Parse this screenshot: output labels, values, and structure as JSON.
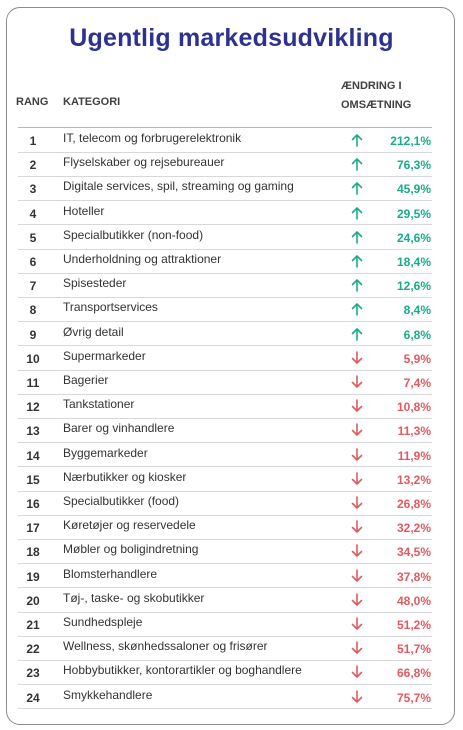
{
  "title": "Ugentlig markedsudvikling",
  "headers": {
    "rank": "RANG",
    "category": "KATEGORI",
    "change_line1": "ÆNDRING I",
    "change_line2": "OMSÆTNING"
  },
  "colors": {
    "up": "#1aab8a",
    "down": "#e05a60",
    "title": "#2e3192"
  },
  "rows": [
    {
      "rank": "1",
      "category": "IT, telecom og forbrugerelektronik",
      "direction": "up",
      "value": "212,1%"
    },
    {
      "rank": "2",
      "category": "Flyselskaber og rejsebureauer",
      "direction": "up",
      "value": "76,3%"
    },
    {
      "rank": "3",
      "category": "Digitale services, spil, streaming og gaming",
      "direction": "up",
      "value": "45,9%"
    },
    {
      "rank": "4",
      "category": "Hoteller",
      "direction": "up",
      "value": "29,5%"
    },
    {
      "rank": "5",
      "category": "Specialbutikker (non-food)",
      "direction": "up",
      "value": "24,6%"
    },
    {
      "rank": "6",
      "category": "Underholdning og attraktioner",
      "direction": "up",
      "value": "18,4%"
    },
    {
      "rank": "7",
      "category": "Spisesteder",
      "direction": "up",
      "value": "12,6%"
    },
    {
      "rank": "8",
      "category": "Transportservices",
      "direction": "up",
      "value": "8,4%"
    },
    {
      "rank": "9",
      "category": "Øvrig detail",
      "direction": "up",
      "value": "6,8%"
    },
    {
      "rank": "10",
      "category": "Supermarkeder",
      "direction": "down",
      "value": "5,9%"
    },
    {
      "rank": "11",
      "category": "Bagerier",
      "direction": "down",
      "value": "7,4%"
    },
    {
      "rank": "12",
      "category": "Tankstationer",
      "direction": "down",
      "value": "10,8%"
    },
    {
      "rank": "13",
      "category": "Barer og vinhandlere",
      "direction": "down",
      "value": "11,3%"
    },
    {
      "rank": "14",
      "category": "Byggemarkeder",
      "direction": "down",
      "value": "11,9%"
    },
    {
      "rank": "15",
      "category": "Nærbutikker og kiosker",
      "direction": "down",
      "value": "13,2%"
    },
    {
      "rank": "16",
      "category": "Specialbutikker (food)",
      "direction": "down",
      "value": "26,8%"
    },
    {
      "rank": "17",
      "category": "Køretøjer og reservedele",
      "direction": "down",
      "value": "32,2%"
    },
    {
      "rank": "18",
      "category": "Møbler og boligindretning",
      "direction": "down",
      "value": "34,5%"
    },
    {
      "rank": "19",
      "category": "Blomsterhandlere",
      "direction": "down",
      "value": "37,8%"
    },
    {
      "rank": "20",
      "category": "Tøj-, taske- og skobutikker",
      "direction": "down",
      "value": "48,0%"
    },
    {
      "rank": "21",
      "category": "Sundhedspleje",
      "direction": "down",
      "value": "51,2%"
    },
    {
      "rank": "22",
      "category": "Wellness, skønhedssaloner og frisører",
      "direction": "down",
      "value": "51,7%"
    },
    {
      "rank": "23",
      "category": "Hobbybutikker, kontorartikler og boghandlere",
      "direction": "down",
      "value": "66,8%"
    },
    {
      "rank": "24",
      "category": "Smykkehandlere",
      "direction": "down",
      "value": "75,7%"
    }
  ]
}
